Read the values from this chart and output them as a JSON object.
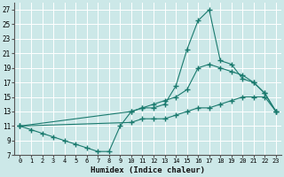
{
  "xlabel": "Humidex (Indice chaleur)",
  "background_color": "#cce8e8",
  "grid_color": "#aacccc",
  "line_color": "#1a7a6e",
  "xlim": [
    -0.5,
    23.5
  ],
  "ylim": [
    7,
    28
  ],
  "xticks": [
    0,
    1,
    2,
    3,
    4,
    5,
    6,
    7,
    8,
    9,
    10,
    11,
    12,
    13,
    14,
    15,
    16,
    17,
    18,
    19,
    20,
    21,
    22,
    23
  ],
  "yticks": [
    7,
    9,
    11,
    13,
    15,
    17,
    19,
    21,
    23,
    25,
    27
  ],
  "line1_x": [
    0,
    1,
    2,
    3,
    4,
    5,
    6,
    7,
    8,
    9,
    10,
    11,
    12,
    13,
    14,
    15,
    16,
    17,
    18,
    19,
    20,
    21,
    22,
    23
  ],
  "line1_y": [
    11,
    10.5,
    10,
    9.5,
    9,
    8.5,
    8,
    7.5,
    7.5,
    11,
    13,
    13.5,
    13.5,
    14,
    16.5,
    21.5,
    25.5,
    27,
    20,
    19.5,
    17.5,
    17,
    15.5,
    13
  ],
  "line2_x": [
    0,
    10,
    11,
    12,
    13,
    14,
    15,
    16,
    17,
    18,
    19,
    20,
    21,
    22,
    23
  ],
  "line2_y": [
    11,
    13,
    13.5,
    14,
    14.5,
    15,
    16,
    19,
    19.5,
    19,
    18.5,
    18,
    17,
    15.5,
    13
  ],
  "line3_x": [
    0,
    10,
    11,
    12,
    13,
    14,
    15,
    16,
    17,
    18,
    19,
    20,
    21,
    22,
    23
  ],
  "line3_y": [
    11,
    11.5,
    12,
    12,
    12,
    12.5,
    13,
    13.5,
    13.5,
    14,
    14.5,
    15,
    15,
    15,
    13
  ]
}
